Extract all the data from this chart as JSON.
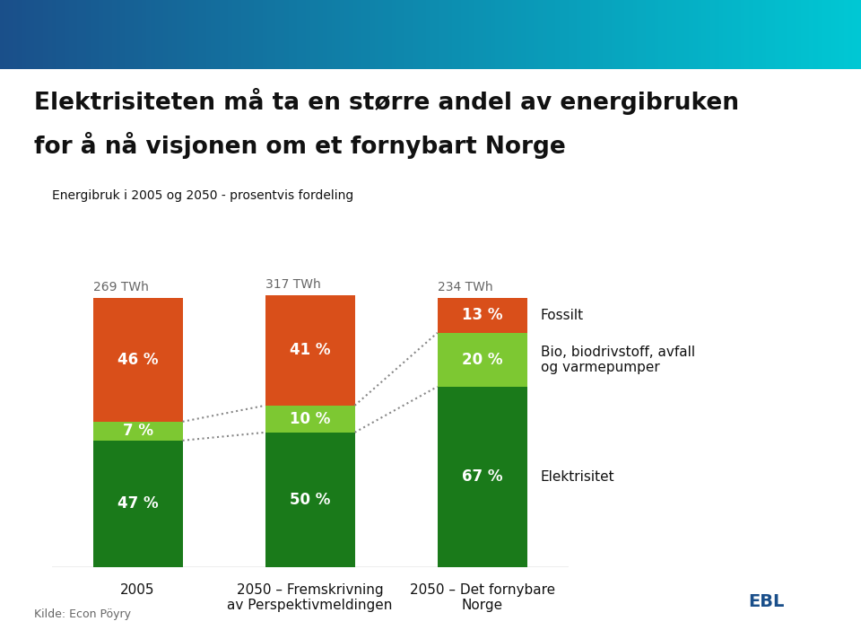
{
  "title_line1": "Elektrisiteten må ta en større andel av energibruken",
  "title_line2": "for å nå visjonen om et fornybart Norge",
  "subtitle": "Energibruk i 2005 og 2050 - prosentvis fordeling",
  "source": "Kilde: Econ Pöyry",
  "bars": [
    {
      "label": "2005",
      "sublabel": "",
      "twh": "269 TWh",
      "elektrisitet": 47,
      "bio": 7,
      "fossilt": 46
    },
    {
      "label": "2050 – Fremskrivning",
      "sublabel": "av Perspektivmeldingen",
      "twh": "317 TWh",
      "elektrisitet": 50,
      "bio": 10,
      "fossilt": 41
    },
    {
      "label": "2050 – Det fornybare",
      "sublabel": "Norge",
      "twh": "234 TWh",
      "elektrisitet": 67,
      "bio": 20,
      "fossilt": 13
    }
  ],
  "colors": {
    "elektrisitet": "#1a7a1a",
    "bio": "#7dc832",
    "fossilt": "#d94f1a",
    "background": "#ffffff",
    "title_color": "#111111",
    "bar_text_color": "#ffffff",
    "axis_line": "#aaaaaa",
    "dotted_line": "#888888",
    "twh_text": "#666666",
    "label_text": "#111111"
  },
  "legend_labels": {
    "fossilt": "Fossilt",
    "bio": "Bio, biodrivstoff, avfall\nog varmepumper",
    "elektrisitet": "Elektrisitet"
  },
  "bar_width": 0.52,
  "figsize": [
    9.6,
    7.02
  ],
  "dpi": 100,
  "header_color_left": "#1a4f8a",
  "header_color_right": "#00c8d4"
}
